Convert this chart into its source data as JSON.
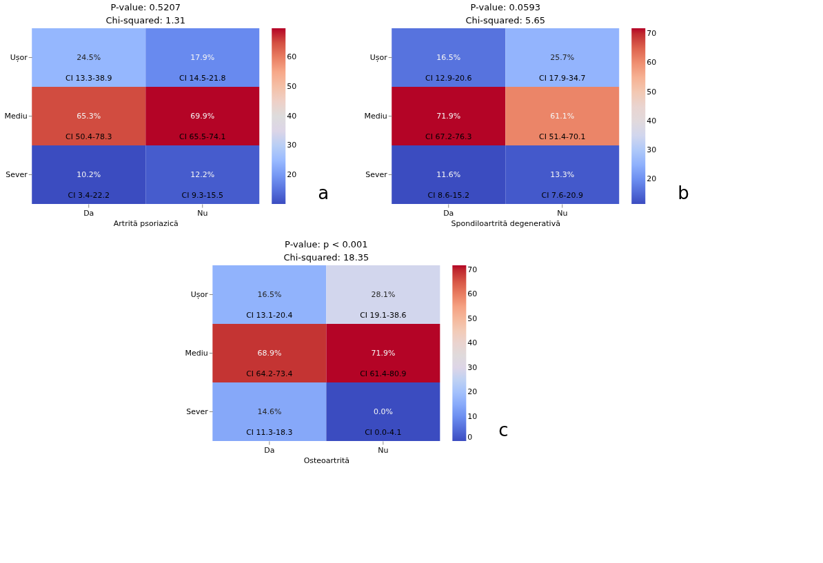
{
  "chart_data": [
    {
      "type": "heatmap",
      "title": "P-value: 0.5207",
      "subtitle": "Chi-squared: 1.31",
      "xlabel": "Artrită psoriazică",
      "categories": [
        "Da",
        "Nu"
      ],
      "y_categories": [
        "Ușor",
        "Mediu",
        "Sever"
      ],
      "cells": [
        [
          24.5,
          17.9
        ],
        [
          65.3,
          69.9
        ],
        [
          10.2,
          12.2
        ]
      ],
      "cell_labels": [
        [
          "24.5%",
          "17.9%"
        ],
        [
          "65.3%",
          "69.9%"
        ],
        [
          "10.2%",
          "12.2%"
        ]
      ],
      "clim": [
        10.2,
        69.9
      ],
      "cticks": [
        20,
        30,
        40,
        50,
        60
      ],
      "annotations": [
        "CI 13.3-38.9",
        "CI 14.5-21.8",
        "CI 50.4-78.3",
        "CI 65.5-74.1",
        "CI 3.4-22.2",
        "CI 9.3-15.5",
        "a"
      ]
    },
    {
      "type": "heatmap",
      "title": "P-value: 0.0593",
      "subtitle": "Chi-squared: 5.65",
      "xlabel": "Spondiloartrită degenerativă",
      "categories": [
        "Da",
        "Nu"
      ],
      "y_categories": [
        "Ușor",
        "Mediu",
        "Sever"
      ],
      "cells": [
        [
          16.5,
          25.7
        ],
        [
          71.9,
          61.1
        ],
        [
          11.6,
          13.3
        ]
      ],
      "cell_labels": [
        [
          "16.5%",
          "25.7%"
        ],
        [
          "71.9%",
          "61.1%"
        ],
        [
          "11.6%",
          "13.3%"
        ]
      ],
      "clim": [
        11.6,
        71.9
      ],
      "cticks": [
        20,
        30,
        40,
        50,
        60,
        70
      ],
      "annotations": [
        "CI 12.9-20.6",
        "CI 17.9-34.7",
        "CI 67.2-76.3",
        "CI 51.4-70.1",
        "CI 8.6-15.2",
        "CI 7.6-20.9",
        "b"
      ]
    },
    {
      "type": "heatmap",
      "title": "P-value: p < 0.001",
      "subtitle": "Chi-squared: 18.35",
      "xlabel": "Osteoartrită",
      "categories": [
        "Da",
        "Nu"
      ],
      "y_categories": [
        "Ușor",
        "Mediu",
        "Sever"
      ],
      "cells": [
        [
          16.5,
          28.1
        ],
        [
          68.9,
          71.9
        ],
        [
          14.6,
          0.0
        ]
      ],
      "cell_labels": [
        [
          "16.5%",
          "28.1%"
        ],
        [
          "68.9%",
          "71.9%"
        ],
        [
          "14.6%",
          "0.0%"
        ]
      ],
      "clim": [
        0,
        71.9
      ],
      "cticks": [
        0,
        10,
        20,
        30,
        40,
        50,
        60,
        70
      ],
      "annotations": [
        "CI 13.1-20.4",
        "CI 19.1-38.6",
        "CI 64.2-73.4",
        "CI 61.4-80.9",
        "CI 11.3-18.3",
        "CI 0.0-4.1",
        "c"
      ]
    }
  ]
}
